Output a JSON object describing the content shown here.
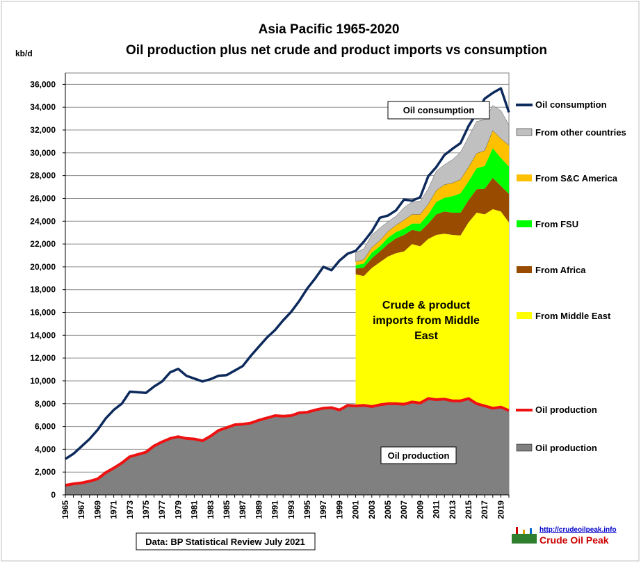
{
  "chart_data": {
    "type": "area",
    "title": "Asia Pacific 1965-2020",
    "subtitle": "Oil production plus net crude and product imports vs consumption",
    "ylabel": "kb/d",
    "ylim": [
      0,
      37000
    ],
    "yticks": [
      0,
      2000,
      4000,
      6000,
      8000,
      10000,
      12000,
      14000,
      16000,
      18000,
      20000,
      22000,
      24000,
      26000,
      28000,
      30000,
      32000,
      34000,
      36000
    ],
    "ytick_labels": [
      "0",
      "2,000",
      "4,000",
      "6,000",
      "8,000",
      "10,000",
      "12,000",
      "14,000",
      "16,000",
      "18,000",
      "20,000",
      "22,000",
      "24,000",
      "26,000",
      "28,000",
      "30,000",
      "32,000",
      "34,000",
      "36,000"
    ],
    "xtick_labels": [
      "1965",
      "1967",
      "1969",
      "1971",
      "1973",
      "1975",
      "1977",
      "1979",
      "1981",
      "1983",
      "1985",
      "1987",
      "1989",
      "1991",
      "1993",
      "1995",
      "1997",
      "1999",
      "2001",
      "2003",
      "2005",
      "2007",
      "2009",
      "2011",
      "2013",
      "2015",
      "2017",
      "2019"
    ],
    "grid": true,
    "legend_position": "right",
    "years": [
      1965,
      1966,
      1967,
      1968,
      1969,
      1970,
      1971,
      1972,
      1973,
      1974,
      1975,
      1976,
      1977,
      1978,
      1979,
      1980,
      1981,
      1982,
      1983,
      1984,
      1985,
      1986,
      1987,
      1988,
      1989,
      1990,
      1991,
      1992,
      1993,
      1994,
      1995,
      1996,
      1997,
      1998,
      1999,
      2000,
      2001,
      2002,
      2003,
      2004,
      2005,
      2006,
      2007,
      2008,
      2009,
      2010,
      2011,
      2012,
      2013,
      2014,
      2015,
      2016,
      2017,
      2018,
      2019,
      2020
    ],
    "consumption": [
      3150,
      3600,
      4250,
      4900,
      5700,
      6700,
      7450,
      8000,
      9050,
      9000,
      8950,
      9500,
      9950,
      10750,
      11050,
      10450,
      10200,
      9950,
      10150,
      10450,
      10500,
      10900,
      11300,
      12200,
      13000,
      13800,
      14450,
      15300,
      16050,
      17000,
      18100,
      19000,
      20000,
      19700,
      20550,
      21150,
      21400,
      22200,
      23100,
      24300,
      24500,
      24950,
      25900,
      25800,
      26100,
      27950,
      28750,
      29800,
      30350,
      30850,
      32350,
      33500,
      34750,
      35250,
      35650,
      33550
    ],
    "production": [
      850,
      970,
      1050,
      1200,
      1400,
      1950,
      2350,
      2800,
      3350,
      3550,
      3750,
      4300,
      4650,
      4950,
      5100,
      4950,
      4900,
      4750,
      5150,
      5650,
      5900,
      6150,
      6200,
      6300,
      6550,
      6750,
      6950,
      6900,
      6950,
      7200,
      7250,
      7450,
      7600,
      7650,
      7450,
      7850,
      7800,
      7850,
      7750,
      7900,
      8000,
      8000,
      7950,
      8150,
      8050,
      8450,
      8350,
      8400,
      8250,
      8250,
      8450,
      8000,
      7800,
      7600,
      7700,
      7400
    ],
    "import_years": [
      2001,
      2002,
      2003,
      2004,
      2005,
      2006,
      2007,
      2008,
      2009,
      2010,
      2011,
      2012,
      2013,
      2014,
      2015,
      2016,
      2017,
      2018,
      2019,
      2020
    ],
    "series": [
      {
        "name": "From Middle East",
        "color": "#ffff00",
        "values": [
          11550,
          11330,
          12150,
          12500,
          12900,
          13200,
          13400,
          13850,
          13750,
          14000,
          14450,
          14500,
          14550,
          14500,
          15450,
          16750,
          16800,
          17450,
          17150,
          16500
        ]
      },
      {
        "name": "From Africa",
        "color": "#994c00",
        "values": [
          500,
          750,
          850,
          950,
          1100,
          1300,
          1450,
          1250,
          1300,
          1350,
          1800,
          1950,
          1950,
          2000,
          1950,
          2050,
          2250,
          2750,
          2250,
          2500
        ]
      },
      {
        "name": "From FSU",
        "color": "#00ff00",
        "values": [
          300,
          350,
          500,
          450,
          550,
          550,
          550,
          550,
          700,
          800,
          1100,
          1200,
          1450,
          1700,
          1650,
          1850,
          2000,
          2600,
          2450,
          2400
        ]
      },
      {
        "name": "From S&C America",
        "color": "#ffc000",
        "values": [
          300,
          350,
          450,
          500,
          550,
          600,
          750,
          800,
          800,
          900,
          1000,
          1150,
          1150,
          1200,
          1250,
          1300,
          1350,
          1550,
          1700,
          1850
        ]
      },
      {
        "name": "From other countries",
        "color": "#c0c0c0",
        "values": [
          800,
          950,
          1100,
          1100,
          850,
          800,
          1100,
          1100,
          1150,
          1350,
          1700,
          1750,
          2050,
          2400,
          2650,
          2800,
          2700,
          2200,
          2450,
          1800
        ]
      }
    ],
    "legend": {
      "consumption": "Oil consumption",
      "production_line": "Oil production",
      "production_area": "Oil production"
    },
    "colors": {
      "consumption": "#0d2a5c",
      "production_line": "#ee1111",
      "production_area": "#808080"
    },
    "annotations": {
      "consumption_box": "Oil consumption",
      "imports_line1": "Crude & product",
      "imports_line2": "imports from Middle",
      "imports_line3": "East",
      "production_box": "Oil production",
      "source": "Data: BP Statistical Review  July 2021"
    }
  },
  "logo": {
    "url": "http://crudeoilpeak.info",
    "name": "Crude Oil Peak"
  }
}
